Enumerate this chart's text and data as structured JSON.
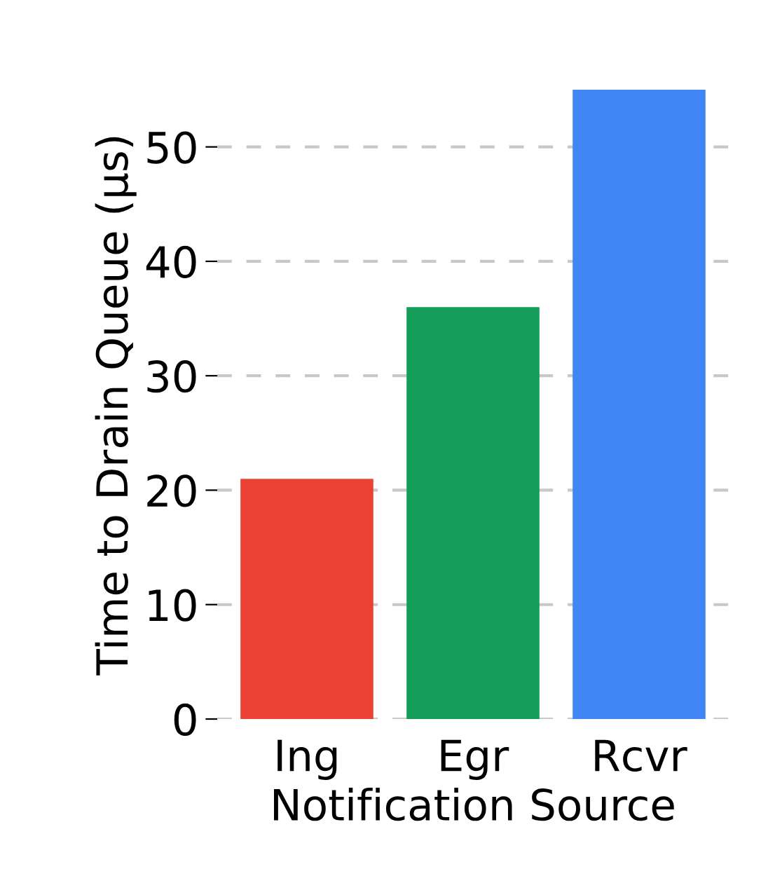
{
  "chart_data": {
    "type": "bar",
    "xlabel": "Notification Source",
    "ylabel": "Time to Drain Queue (μs)",
    "categories": [
      "Ing",
      "Egr",
      "Rcvr"
    ],
    "values": [
      21,
      36,
      55
    ],
    "colors": [
      "#ea4335",
      "#139d58",
      "#4285f4"
    ],
    "ylim": [
      0,
      55
    ],
    "yticks": [
      0,
      10,
      20,
      30,
      40,
      50
    ],
    "grid": "y"
  }
}
